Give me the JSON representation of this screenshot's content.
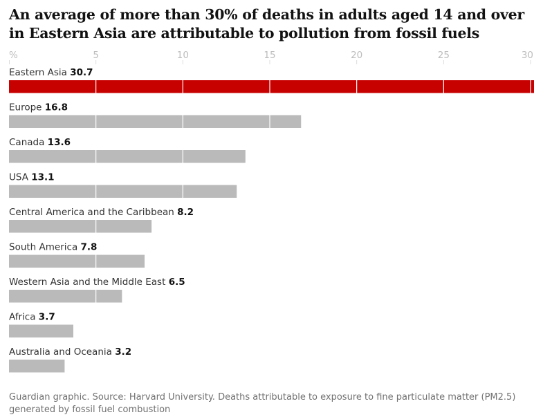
{
  "title": "An average of more than 30% of deaths in adults aged 14 and over in Eastern Asia are attributable to pollution from fossil fuels",
  "source": "Guardian graphic. Source: Harvard University. Deaths attributable to exposure to fine particulate matter (PM2.5) generated by fossil fuel combustion",
  "colors": {
    "highlight": "#c70000",
    "bar": "#bababa",
    "grid": "#ffffff",
    "tick": "#bdbdbd",
    "label": "#333333",
    "value": "#121212"
  },
  "chart_data": {
    "type": "bar",
    "orientation": "horizontal",
    "categories": [
      "Eastern Asia",
      "Europe",
      "Canada",
      "USA",
      "Central America and the Caribbean",
      "South America",
      "Western Asia and the Middle East",
      "Africa",
      "Australia and Oceania"
    ],
    "values": [
      30.7,
      16.8,
      13.6,
      13.1,
      8.2,
      7.8,
      6.5,
      3.7,
      3.2
    ],
    "value_labels": [
      "30.7",
      "16.8",
      "13.6",
      "13.1",
      "8.2",
      "7.8",
      "6.5",
      "3.7",
      "3.2"
    ],
    "highlight_index": 0,
    "xlim": [
      0,
      30
    ],
    "ticks": [
      0,
      5,
      10,
      15,
      20,
      25,
      30
    ],
    "tick_labels": [
      "%",
      "5",
      "10",
      "15",
      "20",
      "25",
      "30"
    ],
    "grid": true
  }
}
